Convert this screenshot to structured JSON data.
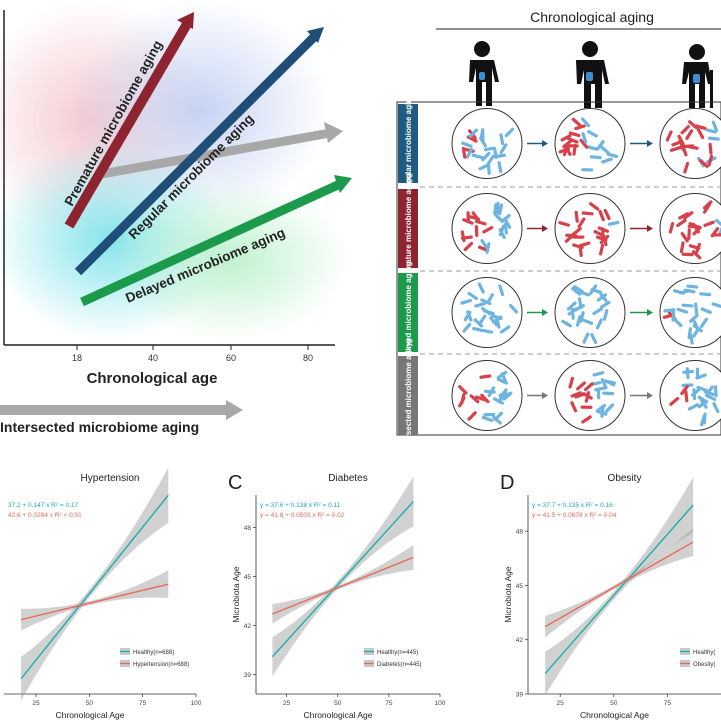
{
  "top_left": {
    "x_axis_label": "Chronological age",
    "x_ticks": [
      "18",
      "40",
      "60",
      "80"
    ],
    "arrows": {
      "premature": "Premature microbiome aging",
      "regular": "Regular microbiome aging",
      "delayed": "Delayed microbiome aging",
      "intersected": "Intersected microbiome aging"
    },
    "colors": {
      "premature": "#8f2431",
      "regular": "#1f4e79",
      "delayed": "#1a9a4a",
      "gray": "#a8a8a8"
    }
  },
  "top_right": {
    "title": "Chronological aging",
    "rows": [
      {
        "label": "Regular microbiome aging",
        "color": "#1f5a80",
        "red_levels": [
          0.25,
          0.45,
          0.65
        ]
      },
      {
        "label": "Premature microbiome aging",
        "color": "#8f2431",
        "red_levels": [
          0.45,
          0.85,
          0.9
        ]
      },
      {
        "label": "Delayed microbiome aging",
        "color": "#1a9a4a",
        "red_levels": [
          0.0,
          0.1,
          0.2
        ]
      },
      {
        "label": "Intersected microbiome aging",
        "color": "#777777",
        "red_levels": [
          0.45,
          0.45,
          0.35
        ]
      }
    ]
  },
  "panels": [
    {
      "letter": "",
      "title": "Hypertension",
      "eq_healthy": "37.2 + 0.147 x   R² = 0.17",
      "eq_disease": "42.6 + 0.0284 x   R² < 0.01",
      "ylabel": "",
      "xlabel": "Chronological Age",
      "x_ticks": [
        "25",
        "50",
        "75",
        "100"
      ],
      "y_ticks": [],
      "legend": [
        "Healthy(n=688)",
        "Hypertension(n=688)"
      ]
    },
    {
      "letter": "C",
      "title": "Diabetes",
      "eq_healthy": "y = 37.6 + 0.138 x   R² = 0.11",
      "eq_disease": "y = 41.8 + 0.0503 x   R² = 0.02",
      "ylabel": "Microbiota Age",
      "xlabel": "Chronological Age",
      "x_ticks": [
        "25",
        "50",
        "75",
        "100"
      ],
      "y_ticks": [
        "39",
        "42",
        "45",
        "48"
      ],
      "legend": [
        "Healthy(n=445)",
        "Diabetes(n=445)"
      ]
    },
    {
      "letter": "D",
      "title": "Obesity",
      "eq_healthy": "y = 37.7 + 0.135 x   R² = 0.16",
      "eq_disease": "y = 41.5 + 0.0678 x   R² = 0.04",
      "ylabel": "Microbiota Age",
      "xlabel": "Chronological Age",
      "x_ticks": [
        "25",
        "50",
        "75"
      ],
      "y_ticks": [
        "39",
        "42",
        "45",
        "48"
      ],
      "legend": [
        "Healthy(",
        "Obesity("
      ]
    }
  ],
  "series_colors": {
    "healthy": "#1aaeae",
    "disease": "#e8685a"
  }
}
